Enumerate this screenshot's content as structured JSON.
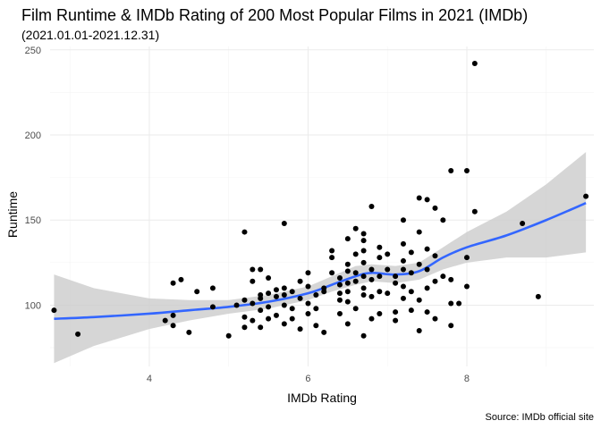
{
  "chart_data": {
    "type": "scatter",
    "title": "Film Runtime & IMDb Rating of 200 Most Popular Films in 2021 (IMDb)",
    "subtitle": "(2021.01.01-2021.12.31)",
    "xlabel": "IMDb Rating",
    "ylabel": "Runtime",
    "caption": "Source: IMDb official site",
    "xlim": [
      2.75,
      9.6
    ],
    "ylim": [
      64,
      252
    ],
    "xticks": [
      4,
      6,
      8
    ],
    "xtick_labels": [
      "4",
      "6",
      "8"
    ],
    "yticks": [
      100,
      150,
      200,
      250
    ],
    "ytick_labels": [
      "100",
      "150",
      "200",
      "250"
    ],
    "grid": true,
    "point_color": "#000000",
    "smooth_color": "#3366ff",
    "band_color": "#cccccc",
    "points": [
      [
        2.8,
        97
      ],
      [
        3.1,
        83
      ],
      [
        4.2,
        91
      ],
      [
        4.3,
        94
      ],
      [
        4.3,
        88
      ],
      [
        4.3,
        113
      ],
      [
        4.4,
        115
      ],
      [
        4.5,
        84
      ],
      [
        4.6,
        108
      ],
      [
        4.8,
        99
      ],
      [
        4.8,
        110
      ],
      [
        5.0,
        82
      ],
      [
        5.1,
        100
      ],
      [
        5.2,
        103
      ],
      [
        5.2,
        93
      ],
      [
        5.2,
        87
      ],
      [
        5.2,
        143
      ],
      [
        5.3,
        101
      ],
      [
        5.3,
        114
      ],
      [
        5.3,
        121
      ],
      [
        5.3,
        91
      ],
      [
        5.4,
        121
      ],
      [
        5.4,
        106
      ],
      [
        5.4,
        104
      ],
      [
        5.4,
        97
      ],
      [
        5.4,
        87
      ],
      [
        5.5,
        116
      ],
      [
        5.5,
        107
      ],
      [
        5.5,
        99
      ],
      [
        5.5,
        92
      ],
      [
        5.6,
        109
      ],
      [
        5.6,
        105
      ],
      [
        5.6,
        94
      ],
      [
        5.7,
        148
      ],
      [
        5.7,
        110
      ],
      [
        5.7,
        106
      ],
      [
        5.7,
        100
      ],
      [
        5.7,
        89
      ],
      [
        5.8,
        108
      ],
      [
        5.8,
        98
      ],
      [
        5.8,
        92
      ],
      [
        5.9,
        114
      ],
      [
        5.9,
        104
      ],
      [
        5.9,
        86
      ],
      [
        6.0,
        111
      ],
      [
        6.0,
        101
      ],
      [
        6.0,
        95
      ],
      [
        6.0,
        119
      ],
      [
        6.1,
        88
      ],
      [
        6.1,
        106
      ],
      [
        6.1,
        98
      ],
      [
        6.2,
        108
      ],
      [
        6.2,
        84
      ],
      [
        6.2,
        110
      ],
      [
        6.3,
        128
      ],
      [
        6.3,
        132
      ],
      [
        6.3,
        119
      ],
      [
        6.4,
        116
      ],
      [
        6.4,
        112
      ],
      [
        6.4,
        107
      ],
      [
        6.4,
        103
      ],
      [
        6.4,
        95
      ],
      [
        6.5,
        139
      ],
      [
        6.5,
        124
      ],
      [
        6.5,
        120
      ],
      [
        6.5,
        113
      ],
      [
        6.5,
        108
      ],
      [
        6.5,
        102
      ],
      [
        6.5,
        89
      ],
      [
        6.6,
        145
      ],
      [
        6.6,
        130
      ],
      [
        6.6,
        114
      ],
      [
        6.6,
        98
      ],
      [
        6.6,
        119
      ],
      [
        6.7,
        142
      ],
      [
        6.7,
        138
      ],
      [
        6.7,
        132
      ],
      [
        6.7,
        125
      ],
      [
        6.7,
        117
      ],
      [
        6.7,
        110
      ],
      [
        6.7,
        106
      ],
      [
        6.7,
        82
      ],
      [
        6.8,
        158
      ],
      [
        6.8,
        121
      ],
      [
        6.8,
        115
      ],
      [
        6.8,
        105
      ],
      [
        6.8,
        92
      ],
      [
        6.9,
        134
      ],
      [
        6.9,
        128
      ],
      [
        6.9,
        117
      ],
      [
        6.9,
        108
      ],
      [
        6.9,
        95
      ],
      [
        7.0,
        130
      ],
      [
        7.0,
        121
      ],
      [
        7.0,
        107
      ],
      [
        7.1,
        113
      ],
      [
        7.1,
        96
      ],
      [
        7.1,
        91
      ],
      [
        7.1,
        117
      ],
      [
        7.2,
        150
      ],
      [
        7.2,
        136
      ],
      [
        7.2,
        126
      ],
      [
        7.2,
        121
      ],
      [
        7.2,
        111
      ],
      [
        7.2,
        104
      ],
      [
        7.3,
        131
      ],
      [
        7.3,
        119
      ],
      [
        7.3,
        108
      ],
      [
        7.3,
        97
      ],
      [
        7.4,
        163
      ],
      [
        7.4,
        143
      ],
      [
        7.4,
        124
      ],
      [
        7.4,
        103
      ],
      [
        7.4,
        85
      ],
      [
        7.5,
        162
      ],
      [
        7.5,
        133
      ],
      [
        7.5,
        121
      ],
      [
        7.5,
        110
      ],
      [
        7.5,
        96
      ],
      [
        7.6,
        157
      ],
      [
        7.6,
        129
      ],
      [
        7.6,
        114
      ],
      [
        7.6,
        92
      ],
      [
        7.7,
        150
      ],
      [
        7.7,
        117
      ],
      [
        7.8,
        179
      ],
      [
        7.8,
        115
      ],
      [
        7.8,
        101
      ],
      [
        7.8,
        88
      ],
      [
        7.9,
        101
      ],
      [
        8.0,
        179
      ],
      [
        8.0,
        128
      ],
      [
        8.0,
        111
      ],
      [
        8.1,
        242
      ],
      [
        8.1,
        155
      ],
      [
        8.7,
        148
      ],
      [
        8.9,
        105
      ],
      [
        9.5,
        164
      ]
    ],
    "smooth": [
      {
        "x": 2.8,
        "y": 92,
        "lo": 66,
        "hi": 118
      },
      {
        "x": 3.3,
        "y": 93,
        "lo": 76,
        "hi": 110
      },
      {
        "x": 4.0,
        "y": 95,
        "lo": 86,
        "hi": 104
      },
      {
        "x": 4.5,
        "y": 97,
        "lo": 91,
        "hi": 103
      },
      {
        "x": 5.0,
        "y": 99,
        "lo": 95,
        "hi": 103
      },
      {
        "x": 5.5,
        "y": 102,
        "lo": 98,
        "hi": 106
      },
      {
        "x": 6.0,
        "y": 107,
        "lo": 103,
        "hi": 111
      },
      {
        "x": 6.3,
        "y": 112,
        "lo": 108,
        "hi": 117
      },
      {
        "x": 6.6,
        "y": 117,
        "lo": 112,
        "hi": 123
      },
      {
        "x": 6.8,
        "y": 119,
        "lo": 114,
        "hi": 124
      },
      {
        "x": 7.1,
        "y": 118,
        "lo": 113,
        "hi": 123
      },
      {
        "x": 7.4,
        "y": 120,
        "lo": 115,
        "hi": 125
      },
      {
        "x": 7.7,
        "y": 128,
        "lo": 121,
        "hi": 134
      },
      {
        "x": 8.0,
        "y": 134,
        "lo": 125,
        "hi": 143
      },
      {
        "x": 8.5,
        "y": 141,
        "lo": 128,
        "hi": 155
      },
      {
        "x": 9.0,
        "y": 150,
        "lo": 128,
        "hi": 171
      },
      {
        "x": 9.5,
        "y": 160,
        "lo": 131,
        "hi": 190
      }
    ]
  }
}
